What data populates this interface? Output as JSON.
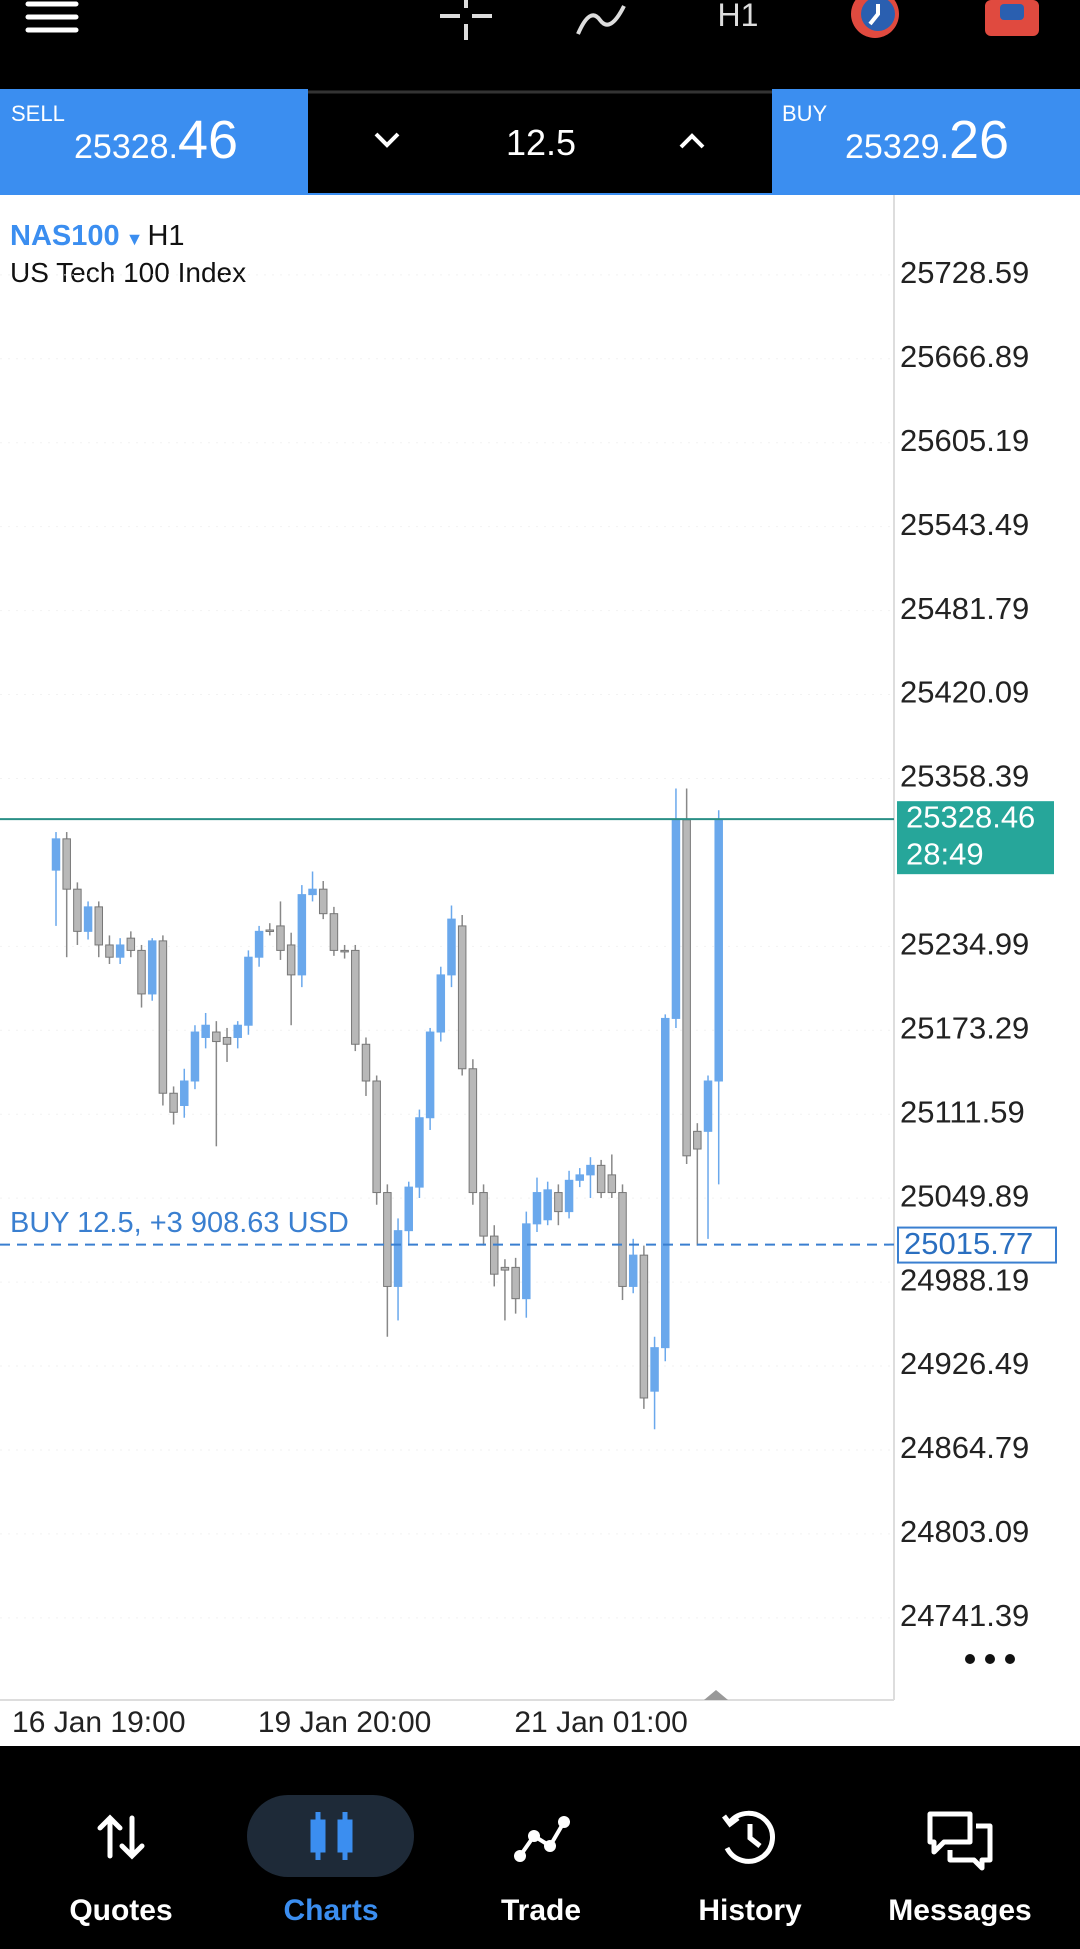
{
  "toolbar": {
    "timeframe": "H1"
  },
  "trade_panel": {
    "sell_label": "SELL",
    "sell_price_main": "25328.",
    "sell_price_big": "46",
    "volume": "12.5",
    "buy_label": "BUY",
    "buy_price_main": "25329.",
    "buy_price_big": "26"
  },
  "chart_data": {
    "type": "candlestick",
    "symbol": "NAS100",
    "timeframe": "H1",
    "description": "US Tech 100 Index",
    "open": [
      25291,
      25314,
      25277,
      25246,
      25264,
      25236,
      25227,
      25241,
      25232,
      25200,
      25239,
      25127,
      25118,
      25136,
      25168,
      25172,
      25168,
      25168,
      25177,
      25227,
      25247,
      25250,
      25236,
      25214,
      25273,
      25277,
      25259,
      25232,
      25232,
      25163,
      25136,
      25054,
      24985,
      25026,
      25058,
      25109,
      25172,
      25214,
      25250,
      25145,
      25054,
      25022,
      24999,
      24999,
      24976,
      25031,
      25034,
      25054,
      25040,
      25063,
      25067,
      25074,
      25067,
      25054,
      24985,
      25008,
      24908,
      24940,
      25182,
      25328,
      25099,
      25099,
      25136
    ],
    "high": [
      25319,
      25319,
      25282,
      25268,
      25268,
      25243,
      25241,
      25246,
      25236,
      25241,
      25243,
      25132,
      25145,
      25177,
      25186,
      25180,
      25175,
      25180,
      25232,
      25250,
      25252,
      25268,
      25245,
      25280,
      25290,
      25283,
      25264,
      25236,
      25236,
      25168,
      25140,
      25060,
      25035,
      25062,
      25115,
      25175,
      25220,
      25265,
      25258,
      25152,
      25060,
      25030,
      25005,
      25006,
      25040,
      25065,
      25062,
      25060,
      25070,
      25072,
      25080,
      25078,
      25082,
      25060,
      25020,
      25015,
      24948,
      25185,
      25351,
      25351,
      25105,
      25140,
      25335
    ],
    "low": [
      25250,
      25227,
      25236,
      25240,
      25227,
      25222,
      25222,
      25227,
      25190,
      25195,
      25118,
      25104,
      25109,
      25130,
      25160,
      25088,
      25150,
      25160,
      25170,
      25220,
      25243,
      25225,
      25177,
      25205,
      25268,
      25255,
      25228,
      25226,
      25158,
      25125,
      25045,
      24948,
      24960,
      25015,
      25050,
      25100,
      25165,
      25205,
      25140,
      25045,
      25015,
      24985,
      24960,
      24965,
      24962,
      25025,
      25030,
      25030,
      25035,
      25058,
      25050,
      25050,
      25050,
      24975,
      24980,
      24895,
      24880,
      24930,
      25175,
      25075,
      25015,
      25020,
      25060
    ],
    "close": [
      25314,
      25277,
      25246,
      25264,
      25236,
      25227,
      25236,
      25232,
      25200,
      25239,
      25127,
      25113,
      25136,
      25172,
      25177,
      25165,
      25163,
      25177,
      25227,
      25246,
      25246,
      25232,
      25214,
      25273,
      25277,
      25259,
      25232,
      25231,
      25163,
      25136,
      25054,
      24985,
      25026,
      25058,
      25109,
      25172,
      25214,
      25255,
      25145,
      25054,
      25022,
      24994,
      24997,
      24976,
      25031,
      25054,
      25056,
      25040,
      25063,
      25067,
      25074,
      25054,
      25054,
      24985,
      25008,
      24903,
      24940,
      25182,
      25328,
      25081,
      25086,
      25136,
      25328
    ],
    "up_color": "#6aa8ec",
    "down_color": "#b8b8b8",
    "xlim": [
      -5.24,
      78.4
    ],
    "xticks": [
      {
        "value": 4,
        "label": "16 Jan 19:00"
      },
      {
        "value": 27,
        "label": "19 Jan 20:00"
      },
      {
        "value": 51,
        "label": "21 Jan 01:00"
      }
    ],
    "ylim": [
      24681,
      25788
    ],
    "yticks": [
      25728.59,
      25666.89,
      25605.19,
      25543.49,
      25481.79,
      25420.09,
      25358.39,
      25234.99,
      25173.29,
      25111.59,
      25049.89,
      24988.19,
      24926.49,
      24864.79,
      24803.09,
      24741.39
    ],
    "current_price": 25328.46,
    "bar_countdown": "28:49",
    "position": {
      "label": "BUY 12.5,  +3 908.63 USD",
      "price": 25015.77
    }
  },
  "nav": {
    "items": [
      "Quotes",
      "Charts",
      "Trade",
      "History",
      "Messages"
    ],
    "active": 1
  }
}
